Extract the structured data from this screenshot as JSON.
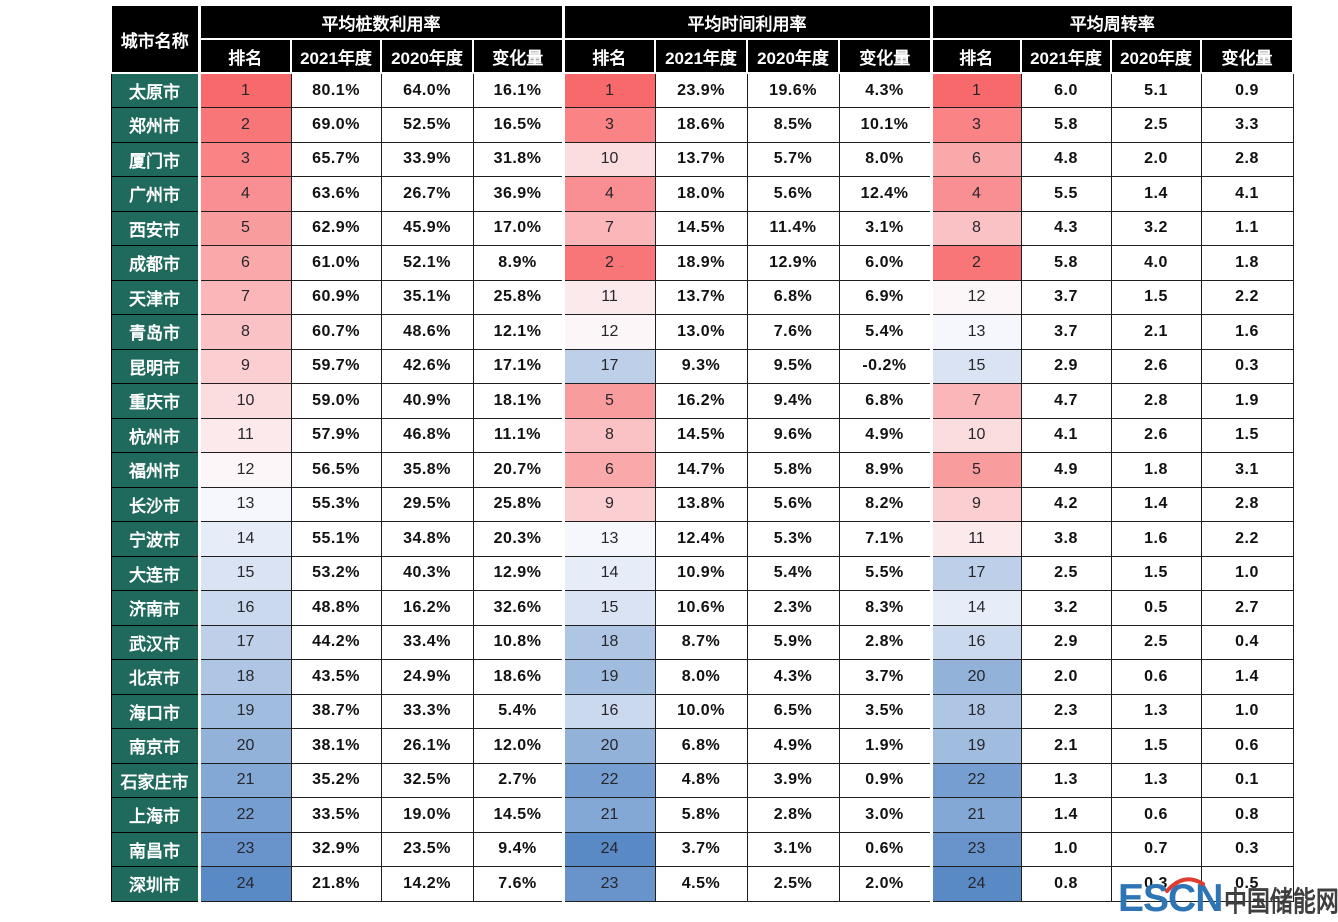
{
  "chart_data": {
    "type": "table",
    "city_column": "城市名称",
    "column_groups": [
      "平均桩数利用率",
      "平均时间利用率",
      "平均周转率"
    ],
    "sub_columns": [
      "排名",
      "2021年度",
      "2020年度",
      "变化量"
    ],
    "rows": [
      {
        "city": "太原市",
        "pile": [
          1,
          "80.1%",
          "64.0%",
          "16.1%"
        ],
        "time": [
          1,
          "23.9%",
          "19.6%",
          "4.3%"
        ],
        "turnover": [
          1,
          "6.0",
          "5.1",
          "0.9"
        ]
      },
      {
        "city": "郑州市",
        "pile": [
          2,
          "69.0%",
          "52.5%",
          "16.5%"
        ],
        "time": [
          3,
          "18.6%",
          "8.5%",
          "10.1%"
        ],
        "turnover": [
          3,
          "5.8",
          "2.5",
          "3.3"
        ]
      },
      {
        "city": "厦门市",
        "pile": [
          3,
          "65.7%",
          "33.9%",
          "31.8%"
        ],
        "time": [
          10,
          "13.7%",
          "5.7%",
          "8.0%"
        ],
        "turnover": [
          6,
          "4.8",
          "2.0",
          "2.8"
        ]
      },
      {
        "city": "广州市",
        "pile": [
          4,
          "63.6%",
          "26.7%",
          "36.9%"
        ],
        "time": [
          4,
          "18.0%",
          "5.6%",
          "12.4%"
        ],
        "turnover": [
          4,
          "5.5",
          "1.4",
          "4.1"
        ]
      },
      {
        "city": "西安市",
        "pile": [
          5,
          "62.9%",
          "45.9%",
          "17.0%"
        ],
        "time": [
          7,
          "14.5%",
          "11.4%",
          "3.1%"
        ],
        "turnover": [
          8,
          "4.3",
          "3.2",
          "1.1"
        ]
      },
      {
        "city": "成都市",
        "pile": [
          6,
          "61.0%",
          "52.1%",
          "8.9%"
        ],
        "time": [
          2,
          "18.9%",
          "12.9%",
          "6.0%"
        ],
        "turnover": [
          2,
          "5.8",
          "4.0",
          "1.8"
        ]
      },
      {
        "city": "天津市",
        "pile": [
          7,
          "60.9%",
          "35.1%",
          "25.8%"
        ],
        "time": [
          11,
          "13.7%",
          "6.8%",
          "6.9%"
        ],
        "turnover": [
          12,
          "3.7",
          "1.5",
          "2.2"
        ]
      },
      {
        "city": "青岛市",
        "pile": [
          8,
          "60.7%",
          "48.6%",
          "12.1%"
        ],
        "time": [
          12,
          "13.0%",
          "7.6%",
          "5.4%"
        ],
        "turnover": [
          13,
          "3.7",
          "2.1",
          "1.6"
        ]
      },
      {
        "city": "昆明市",
        "pile": [
          9,
          "59.7%",
          "42.6%",
          "17.1%"
        ],
        "time": [
          17,
          "9.3%",
          "9.5%",
          "-0.2%"
        ],
        "turnover": [
          15,
          "2.9",
          "2.6",
          "0.3"
        ]
      },
      {
        "city": "重庆市",
        "pile": [
          10,
          "59.0%",
          "40.9%",
          "18.1%"
        ],
        "time": [
          5,
          "16.2%",
          "9.4%",
          "6.8%"
        ],
        "turnover": [
          7,
          "4.7",
          "2.8",
          "1.9"
        ]
      },
      {
        "city": "杭州市",
        "pile": [
          11,
          "57.9%",
          "46.8%",
          "11.1%"
        ],
        "time": [
          8,
          "14.5%",
          "9.6%",
          "4.9%"
        ],
        "turnover": [
          10,
          "4.1",
          "2.6",
          "1.5"
        ]
      },
      {
        "city": "福州市",
        "pile": [
          12,
          "56.5%",
          "35.8%",
          "20.7%"
        ],
        "time": [
          6,
          "14.7%",
          "5.8%",
          "8.9%"
        ],
        "turnover": [
          5,
          "4.9",
          "1.8",
          "3.1"
        ]
      },
      {
        "city": "长沙市",
        "pile": [
          13,
          "55.3%",
          "29.5%",
          "25.8%"
        ],
        "time": [
          9,
          "13.8%",
          "5.6%",
          "8.2%"
        ],
        "turnover": [
          9,
          "4.2",
          "1.4",
          "2.8"
        ]
      },
      {
        "city": "宁波市",
        "pile": [
          14,
          "55.1%",
          "34.8%",
          "20.3%"
        ],
        "time": [
          13,
          "12.4%",
          "5.3%",
          "7.1%"
        ],
        "turnover": [
          11,
          "3.8",
          "1.6",
          "2.2"
        ]
      },
      {
        "city": "大连市",
        "pile": [
          15,
          "53.2%",
          "40.3%",
          "12.9%"
        ],
        "time": [
          14,
          "10.9%",
          "5.4%",
          "5.5%"
        ],
        "turnover": [
          17,
          "2.5",
          "1.5",
          "1.0"
        ]
      },
      {
        "city": "济南市",
        "pile": [
          16,
          "48.8%",
          "16.2%",
          "32.6%"
        ],
        "time": [
          15,
          "10.6%",
          "2.3%",
          "8.3%"
        ],
        "turnover": [
          14,
          "3.2",
          "0.5",
          "2.7"
        ]
      },
      {
        "city": "武汉市",
        "pile": [
          17,
          "44.2%",
          "33.4%",
          "10.8%"
        ],
        "time": [
          18,
          "8.7%",
          "5.9%",
          "2.8%"
        ],
        "turnover": [
          16,
          "2.9",
          "2.5",
          "0.4"
        ]
      },
      {
        "city": "北京市",
        "pile": [
          18,
          "43.5%",
          "24.9%",
          "18.6%"
        ],
        "time": [
          19,
          "8.0%",
          "4.3%",
          "3.7%"
        ],
        "turnover": [
          20,
          "2.0",
          "0.6",
          "1.4"
        ]
      },
      {
        "city": "海口市",
        "pile": [
          19,
          "38.7%",
          "33.3%",
          "5.4%"
        ],
        "time": [
          16,
          "10.0%",
          "6.5%",
          "3.5%"
        ],
        "turnover": [
          18,
          "2.3",
          "1.3",
          "1.0"
        ]
      },
      {
        "city": "南京市",
        "pile": [
          20,
          "38.1%",
          "26.1%",
          "12.0%"
        ],
        "time": [
          20,
          "6.8%",
          "4.9%",
          "1.9%"
        ],
        "turnover": [
          19,
          "2.1",
          "1.5",
          "0.6"
        ]
      },
      {
        "city": "石家庄市",
        "pile": [
          21,
          "35.2%",
          "32.5%",
          "2.7%"
        ],
        "time": [
          22,
          "4.8%",
          "3.9%",
          "0.9%"
        ],
        "turnover": [
          22,
          "1.3",
          "1.3",
          "0.1"
        ]
      },
      {
        "city": "上海市",
        "pile": [
          22,
          "33.5%",
          "19.0%",
          "14.5%"
        ],
        "time": [
          21,
          "5.8%",
          "2.8%",
          "3.0%"
        ],
        "turnover": [
          21,
          "1.4",
          "0.6",
          "0.8"
        ]
      },
      {
        "city": "南昌市",
        "pile": [
          23,
          "32.9%",
          "23.5%",
          "9.4%"
        ],
        "time": [
          24,
          "3.7%",
          "3.1%",
          "0.6%"
        ],
        "turnover": [
          23,
          "1.0",
          "0.7",
          "0.3"
        ]
      },
      {
        "city": "深圳市",
        "pile": [
          24,
          "21.8%",
          "14.2%",
          "7.6%"
        ],
        "time": [
          23,
          "4.5%",
          "2.5%",
          "2.0%"
        ],
        "turnover": [
          24,
          "0.8",
          "0.3",
          "0.5"
        ]
      }
    ],
    "rank_color_scale": {
      "description": "3-color scale on rank: 1=red, mid=white, 24=blue",
      "min_rank": 1,
      "max_rank": 24
    }
  },
  "colors": {
    "header_bg": "#000000",
    "header_text": "#FFFFFF",
    "city_bg": "#1F6A5C",
    "city_text": "#FFFFFF",
    "border": "#1F1F1F",
    "scale_high": "#F8696B",
    "scale_mid": "#FCFCFF",
    "scale_low": "#5A8AC6",
    "logo_blue": "#2E75B6",
    "logo_red": "#E03C31",
    "logo_dark": "#3F3F3F"
  },
  "watermark": {
    "brand": "ESCN",
    "site": "中国储能网"
  }
}
